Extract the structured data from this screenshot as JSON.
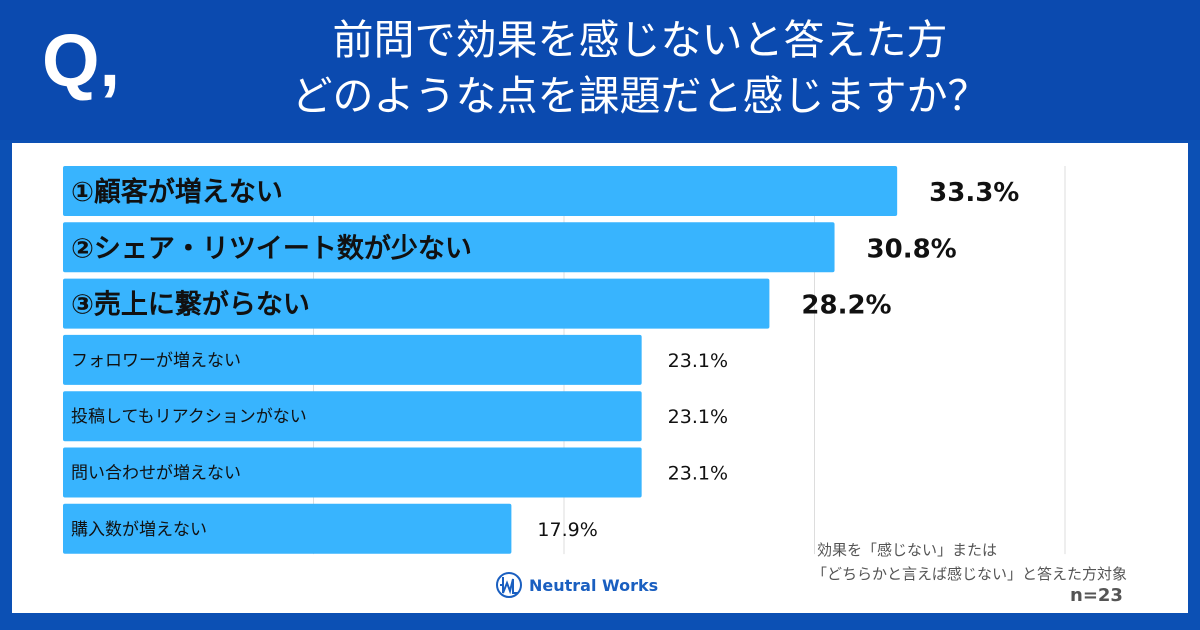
{
  "header": {
    "q_mark": "Q,",
    "title_line1": "前問で効果を感じないと答えた方",
    "title_line2": "どのような点を課題だと感じますか？"
  },
  "chart_data": {
    "type": "bar",
    "orientation": "horizontal",
    "categories": [
      "①顧客が増えない",
      "②シェア・リツイート数が少ない",
      "③売上に繋がらない",
      "フォロワーが増えない",
      "投稿してもリアクションがない",
      "問い合わせが増えない",
      "購入数が増えない"
    ],
    "values": [
      33.3,
      30.8,
      28.2,
      23.1,
      23.1,
      23.1,
      17.9
    ],
    "value_labels": [
      "33.3%",
      "30.8%",
      "28.2%",
      "23.1%",
      "23.1%",
      "23.1%",
      "17.9%"
    ],
    "xlim": [
      0,
      45
    ],
    "grid": true,
    "bar_color": "#38b4fe"
  },
  "notes": {
    "line1": "効果を「感じない」または",
    "line2": "「どちらかと言えば感じない」と答えた方対象",
    "n": "n=23"
  },
  "logo": {
    "text": "Neutral Works"
  },
  "colors": {
    "header": "#0b4aaf",
    "bar": "#38b4fe"
  }
}
